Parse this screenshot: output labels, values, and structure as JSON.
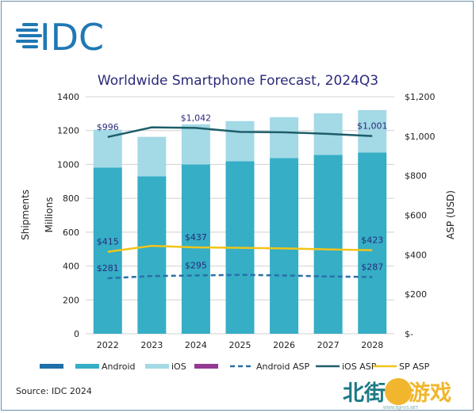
{
  "logo": {
    "text": "IDC",
    "color": "#1f78b4"
  },
  "source": "Source: IDC 2024",
  "watermark": {
    "text": "北街游戏",
    "url_text": "WWW.BJJHXS.NET"
  },
  "colors": {
    "android": "#35aec6",
    "ios": "#a4d9e6",
    "blank1": "#1f6fa8",
    "blank2": "#943a92",
    "android_asp": "#2a6fa6",
    "ios_asp": "#1e5e6a",
    "sp_asp": "#f0c419",
    "title": "#2b2a7a",
    "grid": "#d0d0d0"
  },
  "chart_data": {
    "type": "bar",
    "title": "Worldwide Smartphone Forecast, 2024Q3",
    "ylabel": "Shipments",
    "ylabel2": "Millions",
    "y2label": "ASP (USD)",
    "ylim": [
      0,
      1400
    ],
    "y2lim": [
      0,
      1200
    ],
    "yticks": [
      "0",
      "200",
      "400",
      "600",
      "800",
      "1000",
      "1200",
      "1400"
    ],
    "y2ticks": [
      "$-",
      "$200",
      "$400",
      "$600",
      "$800",
      "$1,000",
      "$1,200"
    ],
    "grid": true,
    "categories": [
      "2022",
      "2023",
      "2024",
      "2025",
      "2026",
      "2027",
      "2028"
    ],
    "series": [
      {
        "name": "Android",
        "type": "stacked-bar",
        "values": [
          981,
          930,
          1000,
          1019,
          1037,
          1056,
          1070
        ]
      },
      {
        "name": "iOS",
        "type": "stacked-bar",
        "values": [
          224,
          233,
          237,
          237,
          242,
          246,
          251
        ]
      },
      {
        "name": "Android ASP",
        "type": "line-dashed",
        "axis": "right",
        "values": [
          281,
          292,
          295,
          298,
          295,
          290,
          287
        ]
      },
      {
        "name": "iOS ASP",
        "type": "line",
        "axis": "right",
        "values": [
          996,
          1045,
          1042,
          1022,
          1020,
          1012,
          1001
        ]
      },
      {
        "name": "SP ASP",
        "type": "line",
        "axis": "right",
        "values": [
          415,
          445,
          437,
          435,
          432,
          427,
          423
        ]
      }
    ],
    "data_labels": [
      {
        "series": "iOS ASP",
        "index": 0,
        "text": "$996"
      },
      {
        "series": "iOS ASP",
        "index": 2,
        "text": "$1,042"
      },
      {
        "series": "iOS ASP",
        "index": 6,
        "text": "$1,001"
      },
      {
        "series": "SP ASP",
        "index": 0,
        "text": "$415"
      },
      {
        "series": "SP ASP",
        "index": 2,
        "text": "$437"
      },
      {
        "series": "SP ASP",
        "index": 6,
        "text": "$423"
      },
      {
        "series": "Android ASP",
        "index": 0,
        "text": "$281"
      },
      {
        "series": "Android ASP",
        "index": 2,
        "text": "$295"
      },
      {
        "series": "Android ASP",
        "index": 6,
        "text": "$287"
      }
    ],
    "legend": {
      "position": "bottom",
      "entries": [
        "",
        "Android",
        "iOS",
        "",
        "Android ASP",
        "iOS ASP",
        "SP ASP"
      ]
    }
  }
}
